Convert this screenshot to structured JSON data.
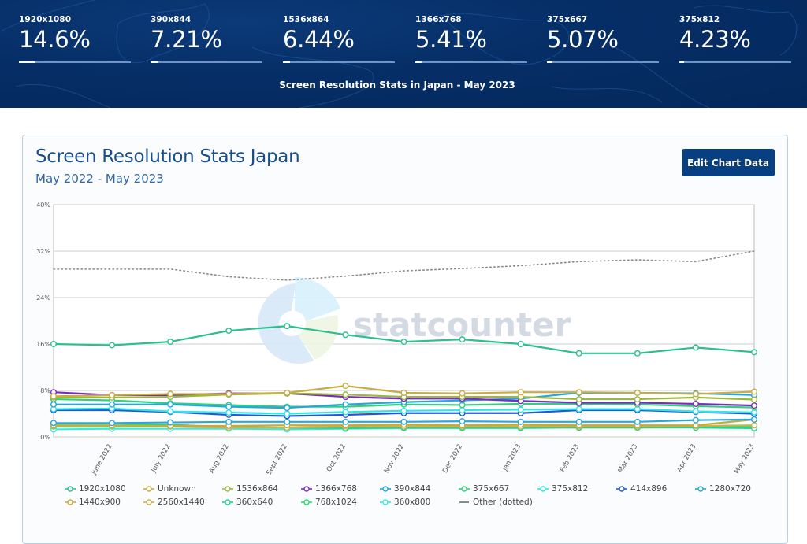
{
  "banner": {
    "stats": [
      {
        "label": "1920x1080",
        "value": "14.6%",
        "percent": 14.6
      },
      {
        "label": "390x844",
        "value": "7.21%",
        "percent": 7.21
      },
      {
        "label": "1536x864",
        "value": "6.44%",
        "percent": 6.44
      },
      {
        "label": "1366x768",
        "value": "5.41%",
        "percent": 5.41
      },
      {
        "label": "375x667",
        "value": "5.07%",
        "percent": 5.07
      },
      {
        "label": "375x812",
        "value": "4.23%",
        "percent": 4.23
      }
    ],
    "caption": "Screen Resolution Stats in Japan - May 2023"
  },
  "card": {
    "title": "Screen Resolution Stats Japan",
    "subtitle": "May 2022 - May 2023",
    "edit_button": "Edit Chart Data",
    "watermark": "statcounter"
  },
  "chart_data": {
    "type": "line",
    "title": "Screen Resolution Stats Japan",
    "subtitle": "May 2022 - May 2023",
    "xlabel": "",
    "ylabel": "",
    "ylim": [
      0,
      40
    ],
    "yticks": [
      "0%",
      "8%",
      "16%",
      "24%",
      "32%",
      "40%"
    ],
    "ytick_values": [
      0,
      8,
      16,
      24,
      32,
      40
    ],
    "grid": true,
    "legend_position": "bottom",
    "categories": [
      "May 2022",
      "June 2022",
      "July 2022",
      "Aug 2022",
      "Sept 2022",
      "Oct 2022",
      "Nov 2022",
      "Dec 2022",
      "Jan 2023",
      "Feb 2023",
      "Mar 2023",
      "Apr 2023",
      "May 2023"
    ],
    "xtick_labels": [
      "June 2022",
      "July 2022",
      "Aug 2022",
      "Sept 2022",
      "Oct 2022",
      "Nov 2022",
      "Dec 2022",
      "Jan 2023",
      "Feb 2023",
      "Mar 2023",
      "Apr 2023",
      "May 2023"
    ],
    "series": [
      {
        "name": "1920x1080",
        "color": "#2ac08e",
        "values": [
          16.0,
          15.8,
          16.4,
          18.3,
          19.1,
          17.6,
          16.4,
          16.8,
          16.0,
          14.4,
          14.4,
          15.4,
          14.6
        ]
      },
      {
        "name": "Unknown",
        "color": "#c7ad45",
        "values": [
          7.0,
          7.2,
          7.4,
          7.4,
          7.6,
          8.8,
          7.6,
          7.5,
          7.7,
          7.7,
          7.6,
          7.4,
          7.8
        ]
      },
      {
        "name": "1536x864",
        "color": "#9ab83c",
        "values": [
          6.8,
          6.8,
          6.9,
          7.3,
          7.5,
          7.3,
          6.9,
          6.9,
          6.9,
          6.5,
          6.5,
          6.8,
          6.44
        ]
      },
      {
        "name": "1366x768",
        "color": "#7a2bc2",
        "values": [
          7.7,
          7.2,
          7.2,
          7.5,
          7.5,
          6.9,
          6.6,
          6.6,
          6.2,
          5.9,
          5.9,
          5.7,
          5.41
        ]
      },
      {
        "name": "390x844",
        "color": "#26a6dc",
        "values": [
          5.6,
          5.6,
          5.6,
          5.2,
          5.0,
          5.6,
          6.0,
          6.3,
          6.6,
          7.6,
          7.6,
          7.5,
          7.21
        ]
      },
      {
        "name": "375x667",
        "color": "#2fd17a",
        "values": [
          6.5,
          6.3,
          5.8,
          5.5,
          5.2,
          5.2,
          5.6,
          5.5,
          5.7,
          5.7,
          5.6,
          5.3,
          5.07
        ]
      },
      {
        "name": "375x812",
        "color": "#2ee6e6",
        "values": [
          4.8,
          4.9,
          4.4,
          4.2,
          4.0,
          4.3,
          4.5,
          4.6,
          4.7,
          4.8,
          4.8,
          4.4,
          4.23
        ]
      },
      {
        "name": "414x896",
        "color": "#2456d9",
        "values": [
          4.6,
          4.6,
          4.3,
          3.8,
          3.6,
          3.8,
          4.1,
          4.1,
          4.1,
          4.6,
          4.6,
          4.3,
          4.0
        ]
      },
      {
        "name": "1280x720",
        "color": "#2aa9d8",
        "values": [
          2.4,
          2.4,
          2.5,
          2.6,
          2.6,
          2.6,
          2.6,
          2.7,
          2.6,
          2.6,
          2.6,
          2.9,
          3.0
        ]
      },
      {
        "name": "1440x900",
        "color": "#c9a93c",
        "values": [
          2.0,
          2.0,
          1.9,
          1.9,
          2.0,
          2.0,
          2.1,
          2.0,
          2.1,
          2.0,
          2.0,
          2.0,
          3.0
        ]
      },
      {
        "name": "2560x1440",
        "color": "#d0b049",
        "values": [
          1.9,
          1.9,
          1.8,
          1.6,
          1.6,
          1.8,
          1.8,
          1.8,
          1.8,
          1.8,
          1.8,
          1.9,
          2.0
        ]
      },
      {
        "name": "360x640",
        "color": "#1fd68a",
        "values": [
          2.3,
          2.3,
          2.1,
          1.7,
          1.6,
          1.5,
          1.6,
          1.6,
          1.6,
          1.6,
          1.6,
          1.6,
          1.5
        ]
      },
      {
        "name": "768x1024",
        "color": "#1ee36a",
        "values": [
          1.8,
          1.8,
          1.8,
          1.7,
          1.6,
          1.7,
          1.7,
          1.7,
          1.7,
          1.7,
          1.7,
          1.7,
          1.8
        ]
      },
      {
        "name": "360x800",
        "color": "#3ee8e0",
        "values": [
          1.3,
          1.4,
          1.4,
          1.4,
          1.3,
          1.4,
          1.5,
          1.5,
          1.5,
          1.6,
          1.6,
          1.7,
          1.7
        ]
      },
      {
        "name": "Other (dotted)",
        "color": "#8a8a8a",
        "dotted": true,
        "values": [
          28.9,
          28.9,
          28.9,
          27.6,
          27.0,
          27.7,
          28.6,
          29.0,
          29.5,
          30.2,
          30.5,
          30.2,
          32.0
        ]
      }
    ]
  }
}
